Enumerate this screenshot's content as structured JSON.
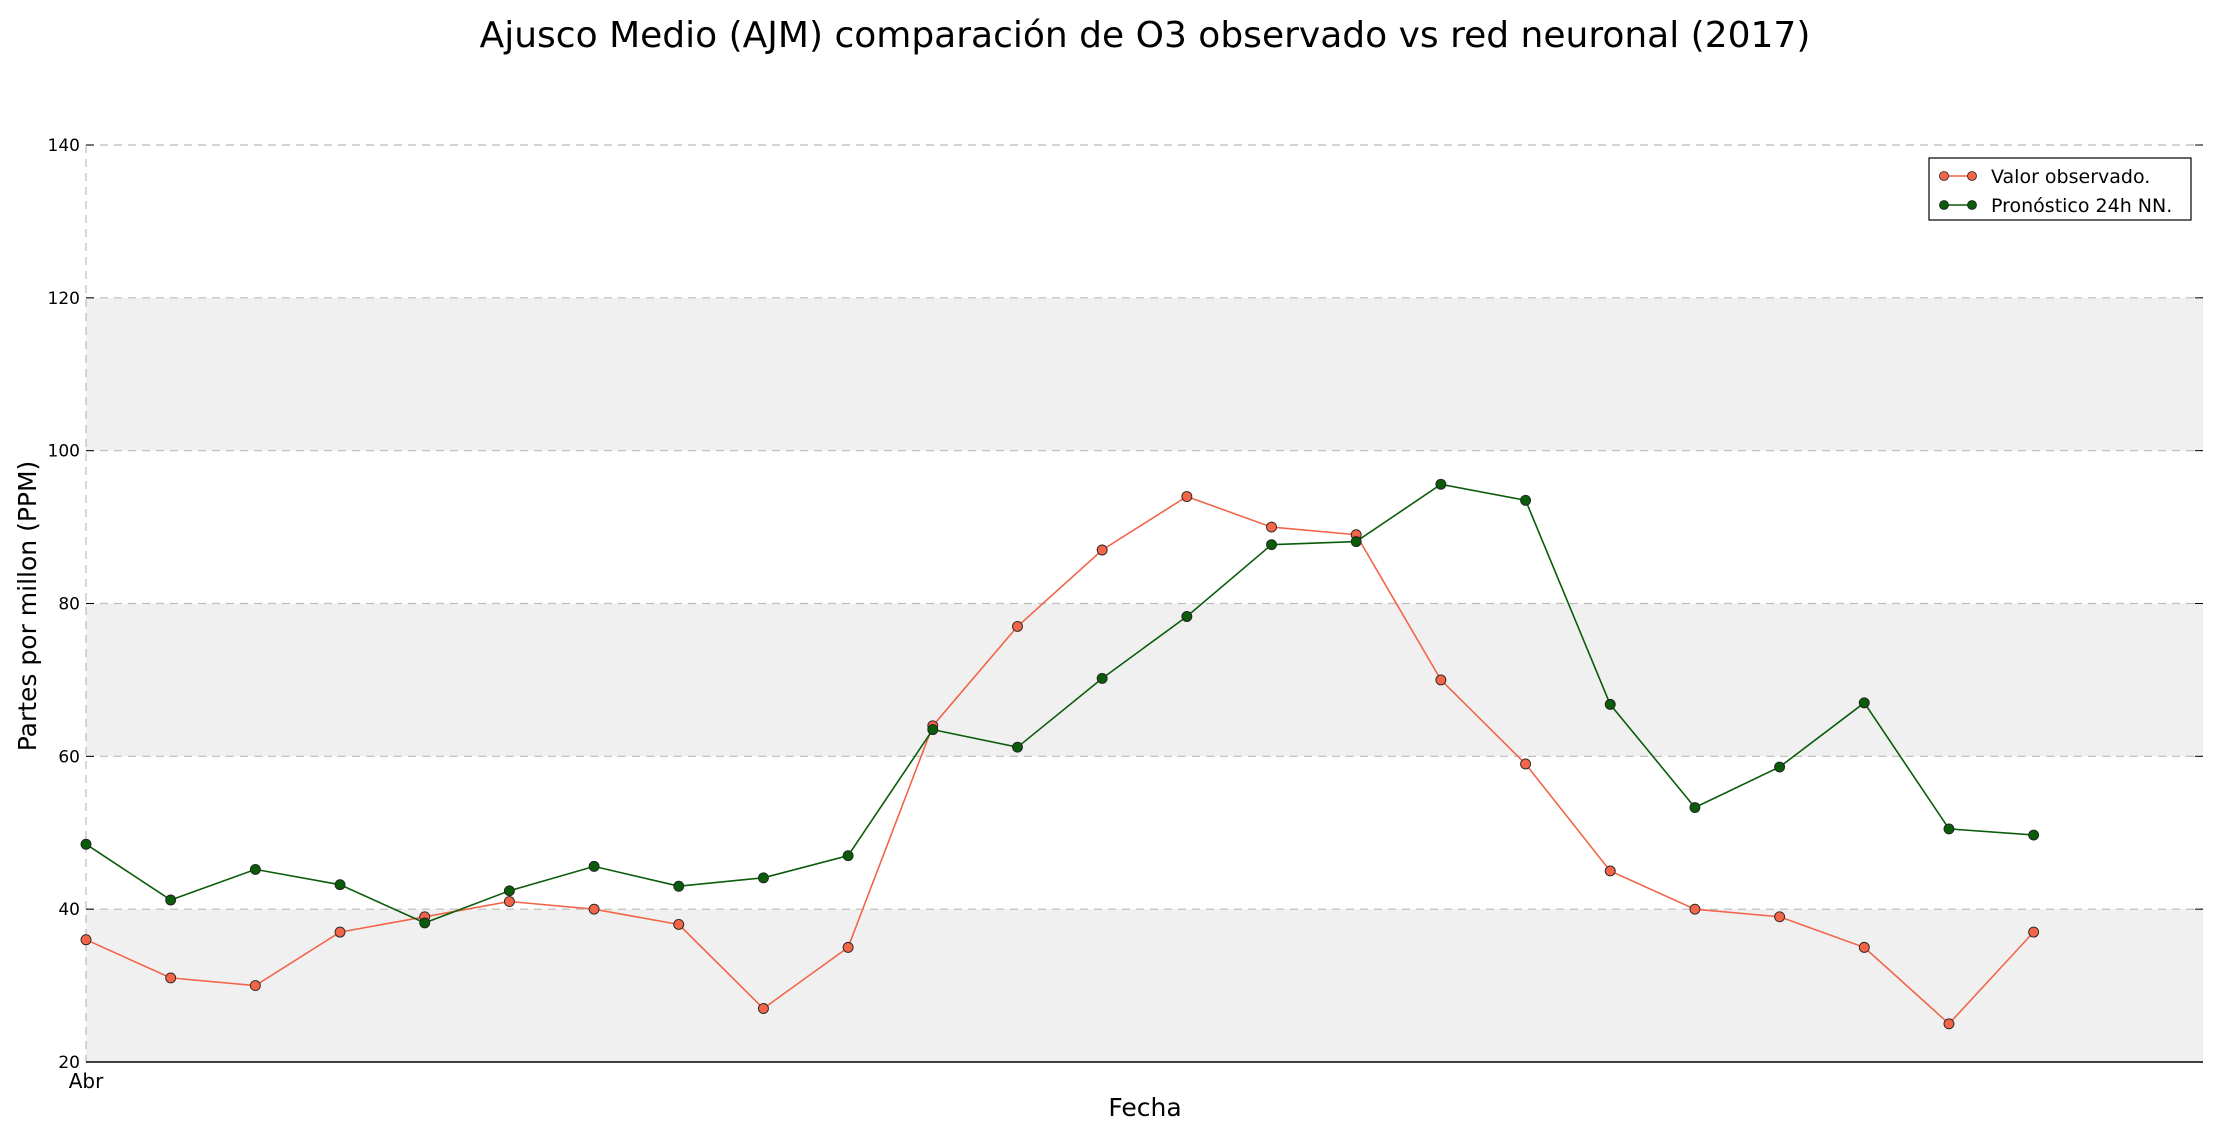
{
  "chart_data": {
    "type": "line",
    "title": "Ajusco Medio (AJM) comparación de O3 observado vs red neuronal (2017)",
    "xlabel": "Fecha",
    "ylabel": "Partes por millon (PPM)",
    "xlim": [
      0,
      25
    ],
    "ylim": [
      20,
      140
    ],
    "yticks": [
      20,
      40,
      60,
      80,
      100,
      120,
      140
    ],
    "xtick_labels": [
      {
        "x": 0,
        "label": "Abr"
      }
    ],
    "x": [
      0,
      1,
      2,
      3,
      4,
      5,
      6,
      7,
      8,
      9,
      10,
      11,
      12,
      13,
      14,
      15,
      16,
      17,
      18,
      19,
      20,
      21,
      22,
      23
    ],
    "grid": true,
    "legend_position": "top-right",
    "series": [
      {
        "name": "Valor observado.",
        "color": "#f26548",
        "values": [
          36,
          31,
          30,
          37,
          39,
          41,
          40,
          38,
          27,
          35,
          64,
          77,
          87,
          94,
          90,
          89,
          70,
          59,
          45,
          40,
          39,
          35,
          25,
          37
        ]
      },
      {
        "name": "Pronóstico 24h NN.",
        "color": "#0a5c0a",
        "values": [
          48.5,
          41.2,
          45.2,
          43.2,
          38.2,
          42.4,
          45.6,
          43,
          44.1,
          47,
          63.5,
          61.2,
          70.2,
          78.3,
          87.7,
          88.1,
          95.6,
          93.5,
          66.8,
          53.3,
          58.6,
          67,
          50.5,
          49.7
        ]
      }
    ]
  }
}
